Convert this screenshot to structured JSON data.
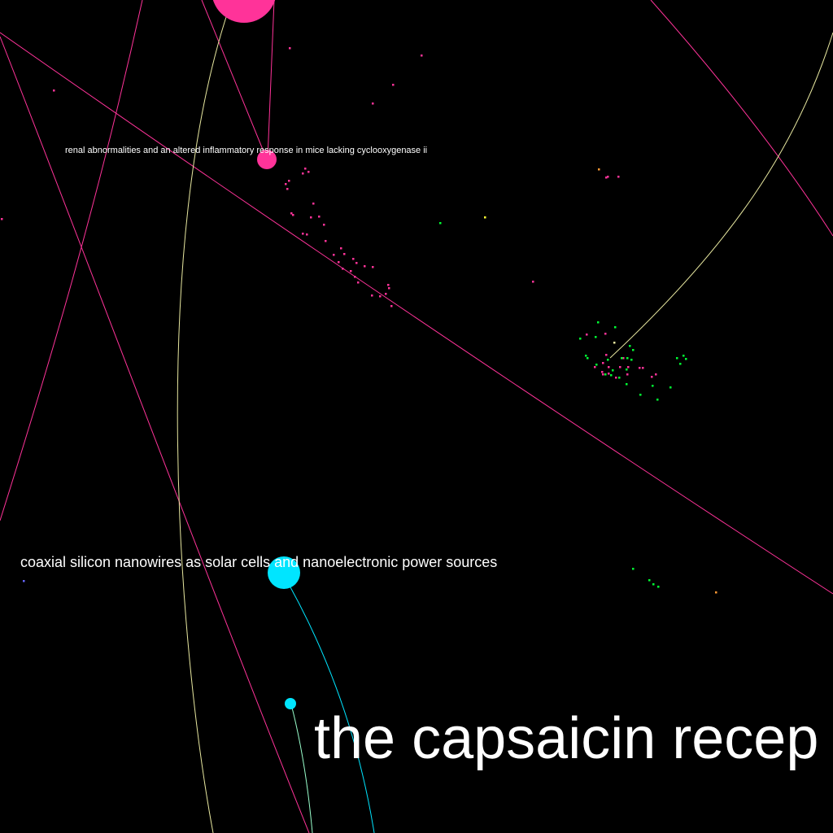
{
  "labels": {
    "small": "renal abnormalities and an altered inflammatory response in mice lacking cyclooxygenase ii",
    "medium": "coaxial silicon nanowires as solar cells and nanoelectronic power sources",
    "large": "the capsaicin recep"
  },
  "colors": {
    "background": "#000000",
    "magenta": "#ff3399",
    "cyan": "#00e5ff",
    "green": "#00ff33",
    "yellow": "#ffff33",
    "orange": "#ff9933",
    "pale_yellow": "#e8e8a0",
    "pale_cyan": "#99ffcc",
    "blue_dot": "#6666ff",
    "label_text": "#ffffff"
  }
}
